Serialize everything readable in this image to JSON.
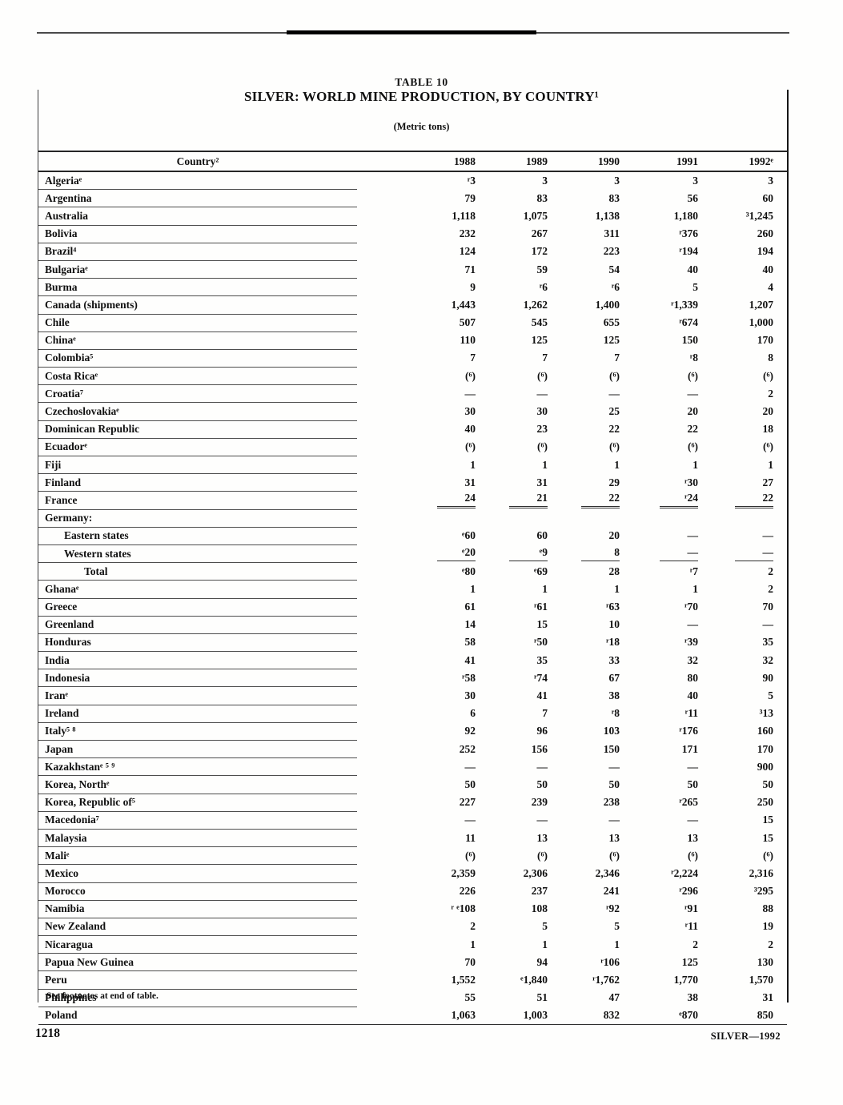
{
  "page": {
    "table_number": "TABLE 10",
    "title": "SILVER: WORLD MINE PRODUCTION, BY COUNTRY¹",
    "units_note": "(Metric tons)",
    "footnote_ref": "See footnotes at end of table.",
    "page_number": "1218",
    "running_footer": "SILVER—1992"
  },
  "table": {
    "columns": [
      "Country²",
      "1988",
      "1989",
      "1990",
      "1991",
      "1992ᵉ"
    ],
    "rows": [
      {
        "label": "Algeriaᵉ",
        "values": [
          "ʳ3",
          "3",
          "3",
          "3",
          "3"
        ]
      },
      {
        "label": "Argentina",
        "values": [
          "79",
          "83",
          "83",
          "56",
          "60"
        ]
      },
      {
        "label": "Australia",
        "values": [
          "1,118",
          "1,075",
          "1,138",
          "1,180",
          "³1,245"
        ]
      },
      {
        "label": "Bolivia",
        "values": [
          "232",
          "267",
          "311",
          "ʳ376",
          "260"
        ]
      },
      {
        "label": "Brazil⁴",
        "values": [
          "124",
          "172",
          "223",
          "ʳ194",
          "194"
        ]
      },
      {
        "label": "Bulgariaᵉ",
        "values": [
          "71",
          "59",
          "54",
          "40",
          "40"
        ]
      },
      {
        "label": "Burma",
        "values": [
          "9",
          "ʳ6",
          "ʳ6",
          "5",
          "4"
        ]
      },
      {
        "label": "Canada (shipments)",
        "values": [
          "1,443",
          "1,262",
          "1,400",
          "ʳ1,339",
          "1,207"
        ]
      },
      {
        "label": "Chile",
        "values": [
          "507",
          "545",
          "655",
          "ʳ674",
          "1,000"
        ]
      },
      {
        "label": "Chinaᵉ",
        "values": [
          "110",
          "125",
          "125",
          "150",
          "170"
        ]
      },
      {
        "label": "Colombia⁵",
        "values": [
          "7",
          "7",
          "7",
          "ʳ8",
          "8"
        ]
      },
      {
        "label": "Costa Ricaᵉ",
        "values": [
          "(⁶)",
          "(⁶)",
          "(⁶)",
          "(⁶)",
          "(⁶)"
        ]
      },
      {
        "label": "Croatia⁷",
        "values": [
          "—",
          "—",
          "—",
          "—",
          "2"
        ]
      },
      {
        "label": "Czechoslovakiaᵉ",
        "values": [
          "30",
          "30",
          "25",
          "20",
          "20"
        ]
      },
      {
        "label": "Dominican Republic",
        "values": [
          "40",
          "23",
          "22",
          "22",
          "18"
        ]
      },
      {
        "label": "Ecuadorᵉ",
        "values": [
          "(⁶)",
          "(⁶)",
          "(⁶)",
          "(⁶)",
          "(⁶)"
        ]
      },
      {
        "label": "Fiji",
        "values": [
          "1",
          "1",
          "1",
          "1",
          "1"
        ]
      },
      {
        "label": "Finland",
        "values": [
          "31",
          "31",
          "29",
          "ʳ30",
          "27"
        ]
      },
      {
        "label": "France",
        "values": [
          "24",
          "21",
          "22",
          "ʳ24",
          "22"
        ],
        "vrule": "double"
      },
      {
        "label": "Germany:",
        "values": [
          "",
          "",
          "",
          "",
          ""
        ],
        "group": true
      },
      {
        "label": "Eastern states",
        "indent": 1,
        "values": [
          "ᵉ60",
          "60",
          "20",
          "—",
          "—"
        ]
      },
      {
        "label": "Western states",
        "indent": 1,
        "values": [
          "ᵉ20",
          "ᵉ9",
          "8",
          "—",
          "—"
        ],
        "vrule": "single"
      },
      {
        "label": "Total",
        "indent": 2,
        "values": [
          "ᵉ80",
          "ᵉ69",
          "28",
          "ʳ7",
          "2"
        ]
      },
      {
        "label": "Ghanaᵉ",
        "values": [
          "1",
          "1",
          "1",
          "1",
          "2"
        ]
      },
      {
        "label": "Greece",
        "values": [
          "61",
          "ʳ61",
          "ʳ63",
          "ʳ70",
          "70"
        ]
      },
      {
        "label": "Greenland",
        "values": [
          "14",
          "15",
          "10",
          "—",
          "—"
        ]
      },
      {
        "label": "Honduras",
        "values": [
          "58",
          "ʳ50",
          "ʳ18",
          "ʳ39",
          "35"
        ]
      },
      {
        "label": "India",
        "values": [
          "41",
          "35",
          "33",
          "32",
          "32"
        ]
      },
      {
        "label": "Indonesia",
        "values": [
          "ʳ58",
          "ʳ74",
          "67",
          "80",
          "90"
        ]
      },
      {
        "label": "Iranᵉ",
        "values": [
          "30",
          "41",
          "38",
          "40",
          "5"
        ]
      },
      {
        "label": "Ireland",
        "values": [
          "6",
          "7",
          "ʳ8",
          "ʳ11",
          "³13"
        ]
      },
      {
        "label": "Italy⁵ ⁸",
        "values": [
          "92",
          "96",
          "103",
          "ʳ176",
          "160"
        ]
      },
      {
        "label": "Japan",
        "values": [
          "252",
          "156",
          "150",
          "171",
          "170"
        ]
      },
      {
        "label": "Kazakhstanᵉ ⁵ ⁹",
        "values": [
          "—",
          "—",
          "—",
          "—",
          "900"
        ]
      },
      {
        "label": "Korea, Northᵉ",
        "values": [
          "50",
          "50",
          "50",
          "50",
          "50"
        ]
      },
      {
        "label": "Korea, Republic of⁵",
        "values": [
          "227",
          "239",
          "238",
          "ʳ265",
          "250"
        ]
      },
      {
        "label": "Macedonia⁷",
        "values": [
          "—",
          "—",
          "—",
          "—",
          "15"
        ]
      },
      {
        "label": "Malaysia",
        "values": [
          "11",
          "13",
          "13",
          "13",
          "15"
        ]
      },
      {
        "label": "Maliᵉ",
        "values": [
          "(⁶)",
          "(⁶)",
          "(⁶)",
          "(⁶)",
          "(⁶)"
        ]
      },
      {
        "label": "Mexico",
        "values": [
          "2,359",
          "2,306",
          "2,346",
          "ʳ2,224",
          "2,316"
        ]
      },
      {
        "label": "Morocco",
        "values": [
          "226",
          "237",
          "241",
          "ʳ296",
          "³295"
        ]
      },
      {
        "label": "Namibia",
        "values": [
          "ʳ ᵉ108",
          "108",
          "ʳ92",
          "ʳ91",
          "88"
        ]
      },
      {
        "label": "New Zealand",
        "values": [
          "2",
          "5",
          "5",
          "ʳ11",
          "19"
        ]
      },
      {
        "label": "Nicaragua",
        "values": [
          "1",
          "1",
          "1",
          "2",
          "2"
        ]
      },
      {
        "label": "Papua New Guinea",
        "values": [
          "70",
          "94",
          "ʳ106",
          "125",
          "130"
        ]
      },
      {
        "label": "Peru",
        "values": [
          "1,552",
          "ᵉ1,840",
          "ʳ1,762",
          "1,770",
          "1,570"
        ]
      },
      {
        "label": "Philippines",
        "values": [
          "55",
          "51",
          "47",
          "38",
          "31"
        ]
      },
      {
        "label": "Poland",
        "values": [
          "1,063",
          "1,003",
          "832",
          "ᵉ870",
          "850"
        ]
      }
    ]
  }
}
